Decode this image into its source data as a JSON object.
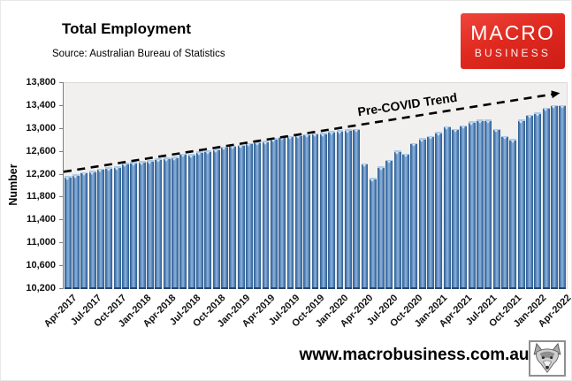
{
  "header": {
    "title": "Total Employment",
    "source": "Source: Australian Bureau of Statistics"
  },
  "logo": {
    "line1": "MACRO",
    "line2": "BUSINESS",
    "bg_color": "#e02a20"
  },
  "footer": {
    "url": "www.macrobusiness.com.au"
  },
  "chart_data": {
    "type": "bar",
    "title": "Total Employment",
    "xlabel": "",
    "ylabel": "Number",
    "ylim": [
      10200,
      13800
    ],
    "ytick_step": 400,
    "ytick_labels": [
      "13,800",
      "13,400",
      "13,000",
      "12,600",
      "12,200",
      "11,800",
      "11,400",
      "11,000",
      "10,600",
      "10,200"
    ],
    "xtick_every": 3,
    "grid": false,
    "legend": "none",
    "bar_color": "#4f81bd",
    "plot_bg": "#f1f0ee",
    "x": [
      "Apr-2017",
      "May-2017",
      "Jun-2017",
      "Jul-2017",
      "Aug-2017",
      "Sep-2017",
      "Oct-2017",
      "Nov-2017",
      "Dec-2017",
      "Jan-2018",
      "Feb-2018",
      "Mar-2018",
      "Apr-2018",
      "May-2018",
      "Jun-2018",
      "Jul-2018",
      "Aug-2018",
      "Sep-2018",
      "Oct-2018",
      "Nov-2018",
      "Dec-2018",
      "Jan-2019",
      "Feb-2019",
      "Mar-2019",
      "Apr-2019",
      "May-2019",
      "Jun-2019",
      "Jul-2019",
      "Aug-2019",
      "Sep-2019",
      "Oct-2019",
      "Nov-2019",
      "Dec-2019",
      "Jan-2020",
      "Feb-2020",
      "Mar-2020",
      "Apr-2020",
      "May-2020",
      "Jun-2020",
      "Jul-2020",
      "Aug-2020",
      "Sep-2020",
      "Oct-2020",
      "Nov-2020",
      "Dec-2020",
      "Jan-2021",
      "Feb-2021",
      "Mar-2021",
      "Apr-2021",
      "May-2021",
      "Jun-2021",
      "Jul-2021",
      "Aug-2021",
      "Sep-2021",
      "Oct-2021",
      "Nov-2021",
      "Dec-2021",
      "Jan-2022",
      "Feb-2022",
      "Mar-2022",
      "Apr-2022"
    ],
    "values": [
      12170,
      12205,
      12240,
      12270,
      12305,
      12330,
      12340,
      12405,
      12420,
      12440,
      12450,
      12480,
      12500,
      12515,
      12570,
      12560,
      12605,
      12625,
      12650,
      12690,
      12710,
      12720,
      12750,
      12775,
      12790,
      12835,
      12860,
      12875,
      12900,
      12910,
      12920,
      12930,
      12960,
      12975,
      12995,
      13000,
      12400,
      12140,
      12345,
      12460,
      12620,
      12570,
      12750,
      12840,
      12880,
      12950,
      13050,
      13000,
      13060,
      13135,
      13160,
      13160,
      13000,
      12880,
      12820,
      13160,
      13250,
      13290,
      13375,
      13415,
      13420
    ],
    "annotation": {
      "label": "Pre-COVID Trend",
      "style": "dashed-arrow",
      "start_value": 12250,
      "end_value": 13630
    }
  }
}
